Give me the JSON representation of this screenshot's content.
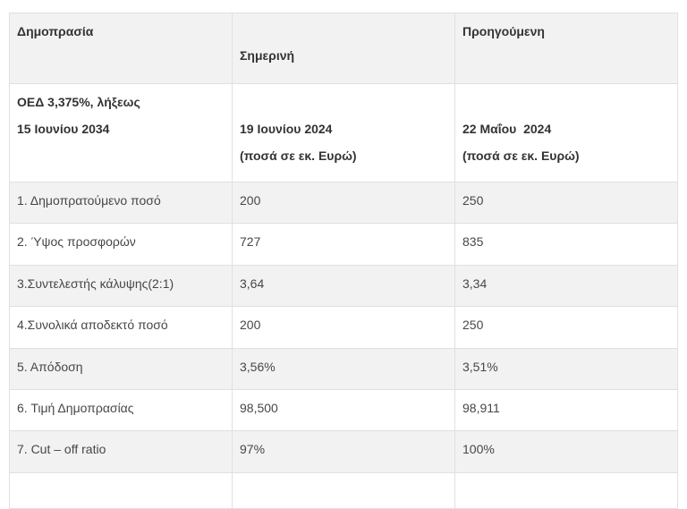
{
  "table": {
    "header_row1": [
      "Δημοπρασία",
      "Σημερινή",
      "Προηγούμενη"
    ],
    "header_row2": {
      "col1": [
        "ΟΕΔ 3,375%, λήξεως",
        "15 Ιουνίου 2034"
      ],
      "col2": [
        "19 Ιουνίου 2024",
        "(ποσά σε εκ. Ευρώ)"
      ],
      "col3": [
        "22 Μαΐου  2024",
        "(ποσά σε εκ. Ευρώ)"
      ]
    },
    "rows": [
      {
        "label": "1. Δημοπρατούμενο ποσό",
        "current": "200",
        "previous": "250"
      },
      {
        "label": "2. Ύψος προσφορών",
        "current": "727",
        "previous": "835"
      },
      {
        "label": "3.Συντελεστής κάλυψης(2:1)",
        "current": "3,64",
        "previous": "3,34"
      },
      {
        "label": "4.Συνολικά αποδεκτό ποσό",
        "current": "200",
        "previous": "250"
      },
      {
        "label": "5. Απόδοση",
        "current": "3,56%",
        "previous": "3,51%"
      },
      {
        "label": "6. Τιμή Δημοπρασίας",
        "current": "98,500",
        "previous": "98,911"
      },
      {
        "label": "7. Cut – off ratio",
        "current": "97%",
        "previous": "100%"
      }
    ],
    "colors": {
      "stripe_background": "#f2f2f2",
      "border": "#e0e0e0",
      "header_text": "#333333",
      "body_text": "#474747"
    }
  },
  "chart_data": {
    "type": "table",
    "title": "Δημοπρασία ΟΕΔ 3,375%, λήξεως 15 Ιουνίου 2034",
    "columns": [
      "Δημοπρασία",
      "Σημερινή 19 Ιουνίου 2024 (ποσά σε εκ. Ευρώ)",
      "Προηγούμενη 22 Μαΐου 2024 (ποσά σε εκ. Ευρώ)"
    ],
    "series": [
      {
        "name": "Σημερινή",
        "values": [
          "200",
          "727",
          "3,64",
          "200",
          "3,56%",
          "98,500",
          "97%"
        ]
      },
      {
        "name": "Προηγούμενη",
        "values": [
          "250",
          "835",
          "3,34",
          "250",
          "3,51%",
          "98,911",
          "100%"
        ]
      }
    ],
    "categories": [
      "1. Δημοπρατούμενο ποσό",
      "2. Ύψος προσφορών",
      "3.Συντελεστής κάλυψης(2:1)",
      "4.Συνολικά αποδεκτό ποσό",
      "5. Απόδοση",
      "6. Τιμή Δημοπρασίας",
      "7. Cut – off ratio"
    ]
  }
}
